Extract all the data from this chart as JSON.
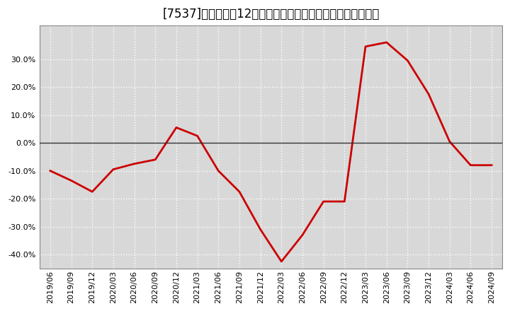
{
  "title": "[7537]　売上高の12か月移動合計の対前年同期増減率の推移",
  "line_color": "#cc0000",
  "background_color": "#ffffff",
  "plot_bg_color": "#d8d8d8",
  "grid_color": "#ffffff",
  "ylim": [
    -0.45,
    0.42
  ],
  "yticks": [
    -0.4,
    -0.3,
    -0.2,
    -0.1,
    0.0,
    0.1,
    0.2,
    0.3
  ],
  "dates": [
    "2019/06",
    "2019/09",
    "2019/12",
    "2020/03",
    "2020/06",
    "2020/09",
    "2020/12",
    "2021/03",
    "2021/06",
    "2021/09",
    "2021/12",
    "2022/03",
    "2022/06",
    "2022/09",
    "2022/12",
    "2023/03",
    "2023/06",
    "2023/09",
    "2023/12",
    "2024/03",
    "2024/06",
    "2024/09"
  ],
  "values": [
    -0.1,
    -0.135,
    -0.175,
    -0.095,
    -0.075,
    -0.06,
    0.055,
    0.025,
    -0.1,
    -0.175,
    -0.31,
    -0.425,
    -0.33,
    -0.21,
    -0.21,
    0.345,
    0.36,
    0.295,
    0.175,
    0.005,
    -0.08,
    -0.08
  ],
  "title_fontsize": 12,
  "tick_fontsize": 8,
  "line_width": 2.0,
  "zero_line_color": "#333333",
  "spine_color": "#888888"
}
